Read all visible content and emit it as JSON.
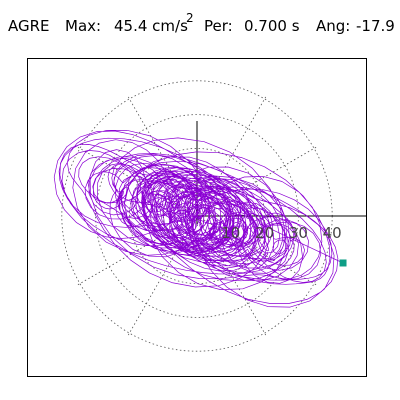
{
  "header": {
    "station": "AGRE",
    "max_label": "Max:",
    "max_value": "45.4 cm/s",
    "max_exponent": "2",
    "per_label": "Per:",
    "per_value": "0.700 s",
    "ang_label": "Ang:",
    "ang_value": "-17.9"
  },
  "colors": {
    "trace": "#8b00d4",
    "marker": "#0e9e86",
    "grid": "#555555",
    "axes": "#000000"
  },
  "chart_data": {
    "type": "scatter",
    "subtype": "polar particle-motion orbit",
    "title": "",
    "radial_ticks": [
      10,
      20,
      30,
      40
    ],
    "radial_tick_labels": [
      "10",
      "20",
      "30",
      "40"
    ],
    "radial_range": [
      0,
      45.4
    ],
    "grid": true,
    "grid_style": "dotted concentric circles and radial spokes every 30 degrees",
    "peak": {
      "value": 45.4,
      "unit": "cm/s2",
      "period_s": 0.7,
      "angle_deg": -17.9
    },
    "end_marker": {
      "x": 43.2,
      "y": -13.9
    },
    "orbit_components": [
      {
        "a": 41,
        "b": 9.5,
        "tilt_deg": 17.9,
        "freq": 1,
        "decay": 1.0
      },
      {
        "a": 18,
        "b": 12,
        "tilt_deg": 40,
        "freq": 2.3,
        "decay": 0.6
      },
      {
        "a": 6,
        "b": 6,
        "tilt_deg": 0,
        "freq": 5.1,
        "decay": 0.4
      }
    ]
  }
}
